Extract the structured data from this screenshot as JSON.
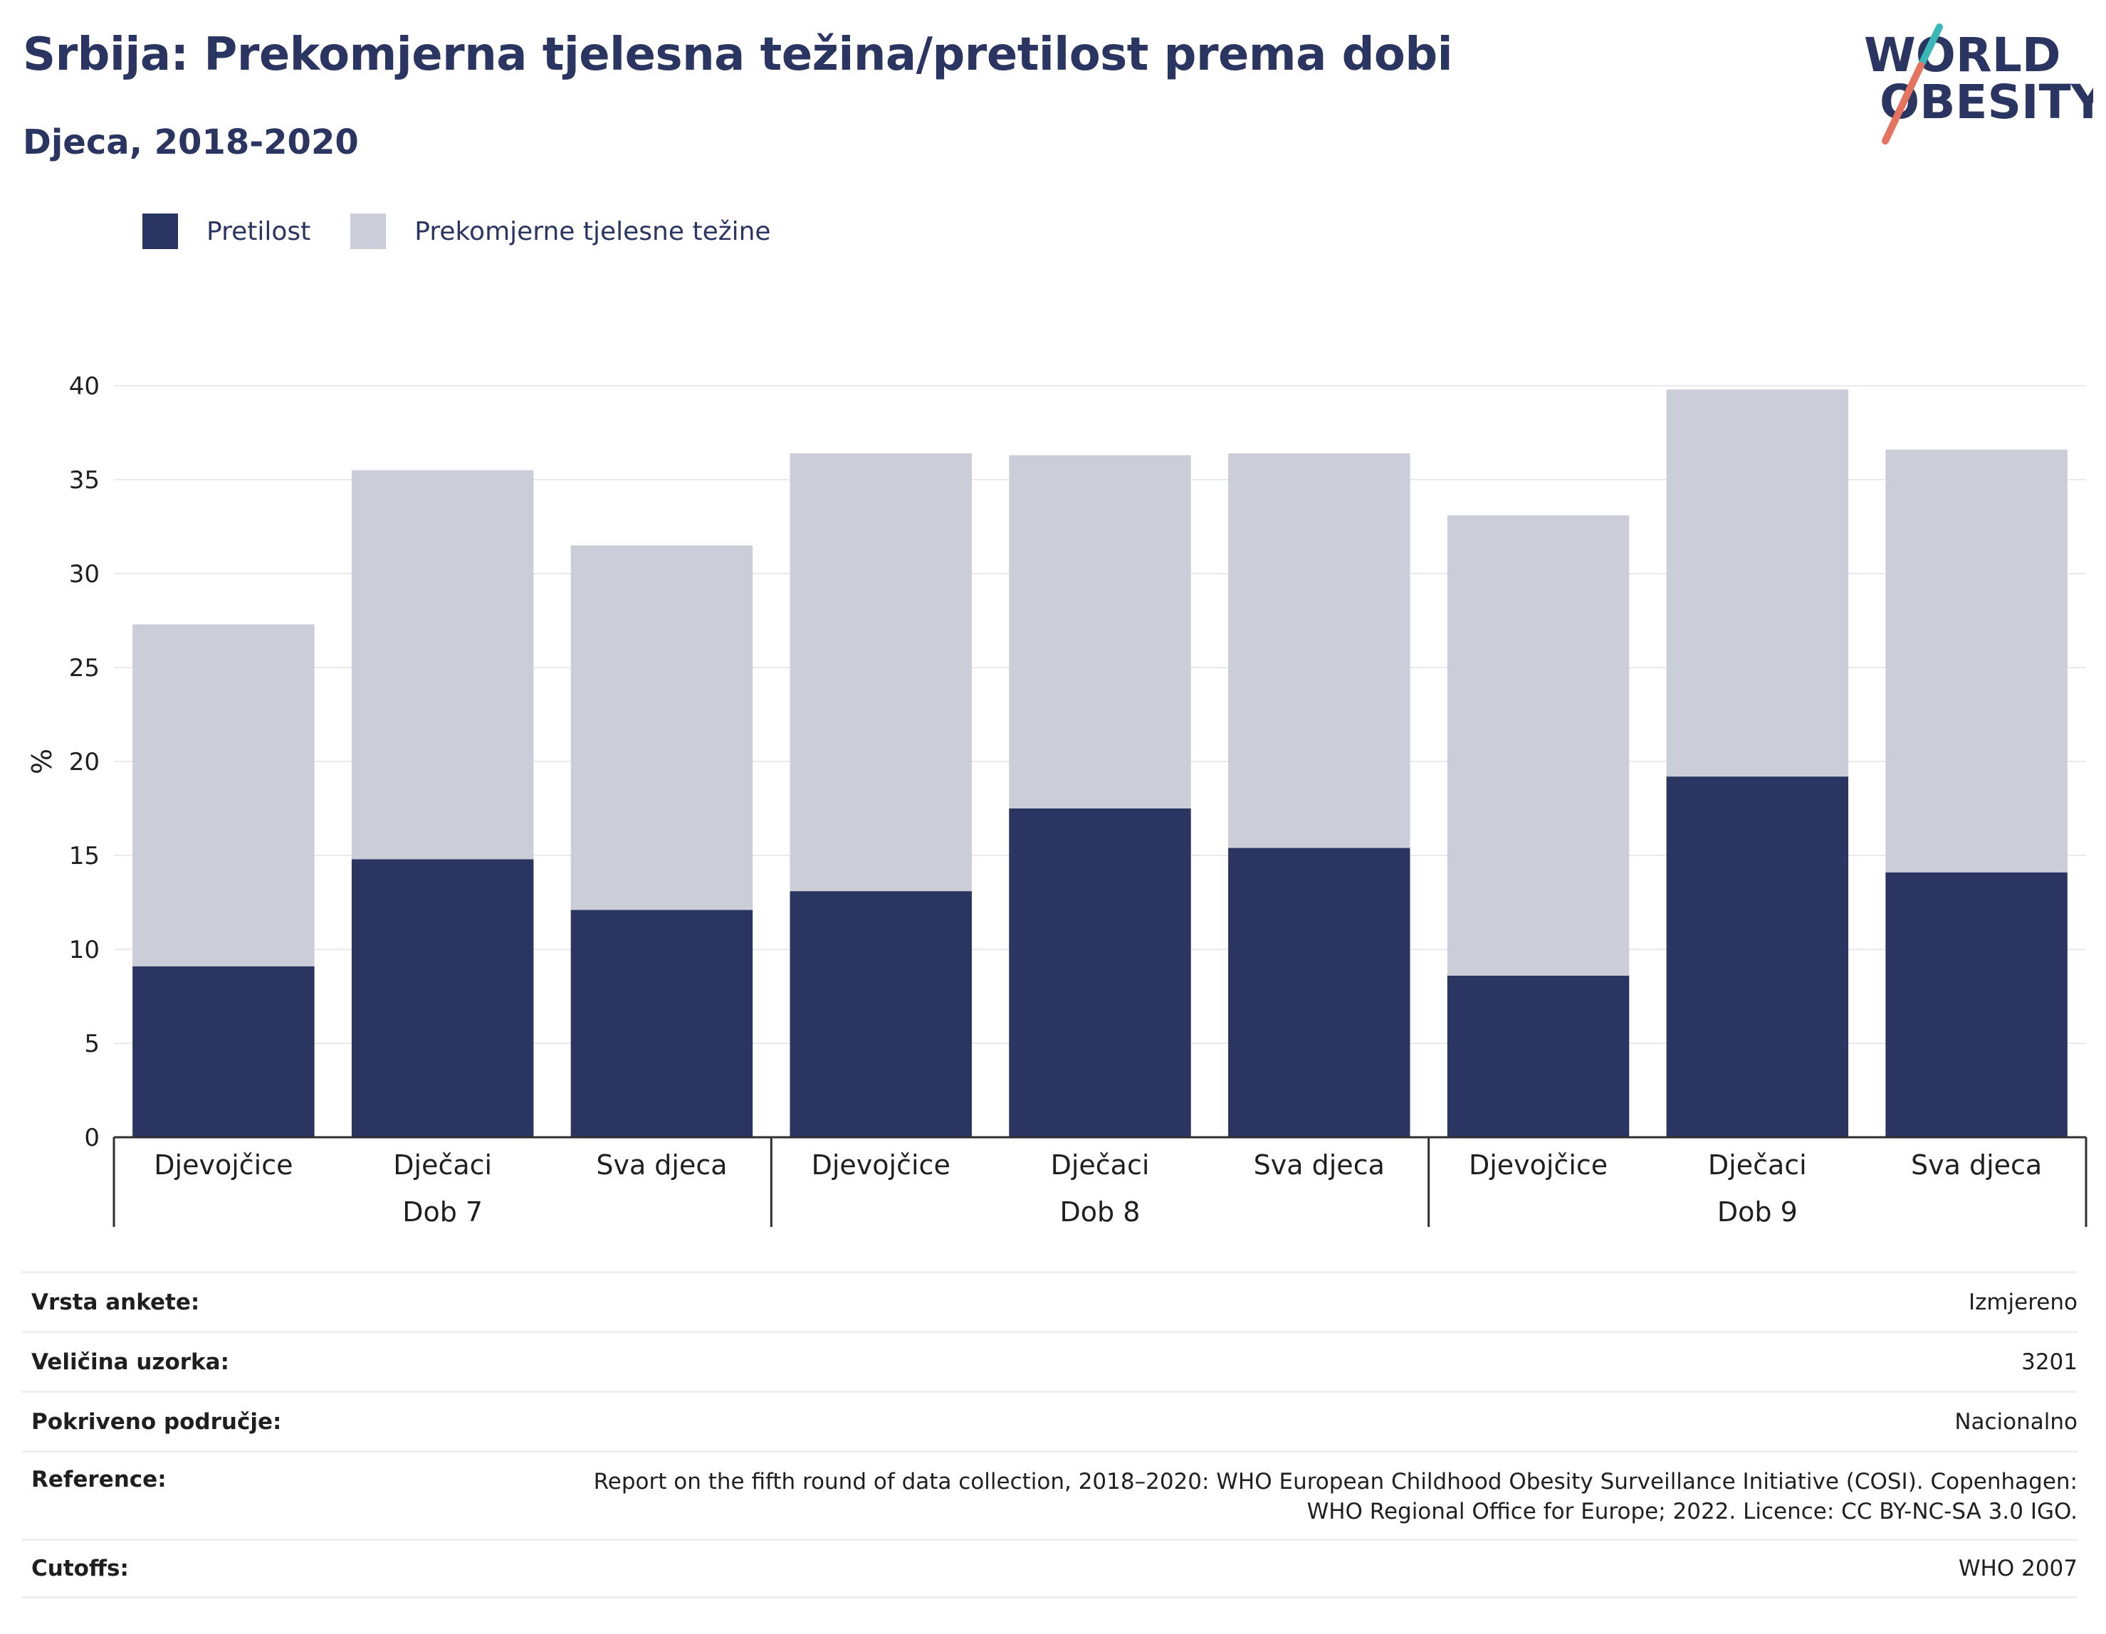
{
  "title": "Srbija: Prekomjerna tjelesna težina/pretilost prema dobi",
  "subtitle": "Djeca, 2018-2020",
  "logo": {
    "line1": "WORLD",
    "line2": "OBESITY",
    "colors": {
      "navy": "#2a3561",
      "teal": "#3ab8b8",
      "coral": "#e5735f"
    }
  },
  "colors": {
    "obesity": "#2a3561",
    "overweight": "#cbcdd9",
    "grid": "#e8e9ee",
    "axis": "#2f2f2f"
  },
  "chart_data": {
    "type": "bar",
    "stacked": true,
    "ylabel": "%",
    "ylim": [
      0,
      40
    ],
    "yticks": [
      0,
      5,
      10,
      15,
      20,
      25,
      30,
      35,
      40
    ],
    "grid": true,
    "legend_position": "top-left",
    "groups": [
      {
        "label": "Dob 7",
        "categories": [
          "Djevojčice",
          "Dječaci",
          "Sva djeca"
        ]
      },
      {
        "label": "Dob 8",
        "categories": [
          "Djevojčice",
          "Dječaci",
          "Sva djeca"
        ]
      },
      {
        "label": "Dob 9",
        "categories": [
          "Djevojčice",
          "Dječaci",
          "Sva djeca"
        ]
      }
    ],
    "series": [
      {
        "name": "Pretilost",
        "values": [
          9.1,
          14.8,
          12.1,
          13.1,
          17.5,
          15.4,
          8.6,
          19.2,
          14.1
        ]
      },
      {
        "name": "Prekomjerne tjelesne težine",
        "values": [
          18.2,
          20.7,
          19.4,
          23.3,
          18.8,
          21.0,
          24.5,
          20.6,
          22.5
        ]
      }
    ]
  },
  "meta": [
    {
      "key": "Vrsta ankete:",
      "value": "Izmjereno"
    },
    {
      "key": "Veličina uzorka:",
      "value": "3201"
    },
    {
      "key": "Pokriveno područje:",
      "value": "Nacionalno"
    },
    {
      "key": "Reference:",
      "value_lines": [
        "Report on the fifth round of data collection, 2018–2020: WHO European Childhood Obesity Surveillance Initiative (COSI). Copenhagen:",
        "WHO Regional Office for Europe; 2022. Licence: CC BY-NC-SA 3.0 IGO."
      ]
    },
    {
      "key": "Cutoffs:",
      "value": "WHO 2007"
    }
  ]
}
